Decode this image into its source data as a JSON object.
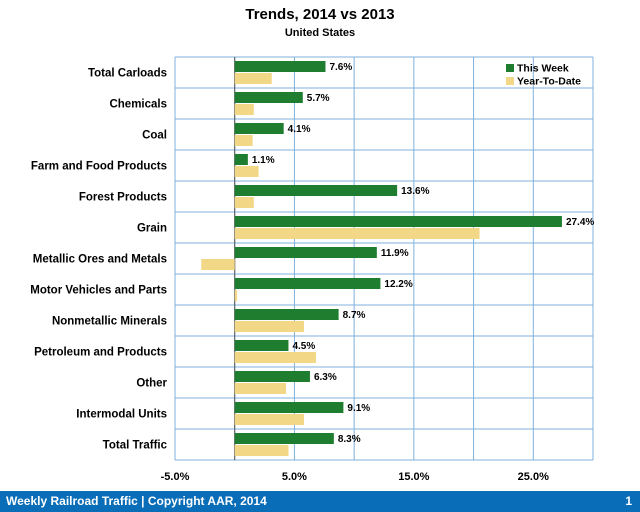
{
  "colors": {
    "this_week": "#1e7d2e",
    "year_to_date": "#f2d886",
    "grid": "#7fb0dc",
    "footer": "#0a6db8"
  },
  "chart_data": {
    "type": "bar",
    "orientation": "horizontal",
    "title": "Trends, 2014 vs 2013",
    "subtitle": "United States",
    "categories": [
      "Total Carloads",
      "Chemicals",
      "Coal",
      "Farm and Food Products",
      "Forest Products",
      "Grain",
      "Metallic Ores and Metals",
      "Motor Vehicles and Parts",
      "Nonmetallic Minerals",
      "Petroleum and Products",
      "Other",
      "Intermodal Units",
      "Total Traffic"
    ],
    "series": [
      {
        "name": "This Week",
        "values": [
          7.6,
          5.7,
          4.1,
          1.1,
          13.6,
          27.4,
          11.9,
          12.2,
          8.7,
          4.5,
          6.3,
          9.1,
          8.3
        ],
        "labels": [
          "7.6%",
          "5.7%",
          "4.1%",
          "1.1%",
          "13.6%",
          "27.4%",
          "11.9%",
          "12.2%",
          "8.7%",
          "4.5%",
          "6.3%",
          "9.1%",
          "8.3%"
        ]
      },
      {
        "name": "Year-To-Date",
        "values": [
          3.1,
          1.6,
          1.5,
          2.0,
          1.6,
          20.5,
          -2.8,
          0.2,
          5.8,
          6.8,
          4.3,
          5.8,
          4.5
        ]
      }
    ],
    "xlim": [
      -5.0,
      30.0
    ],
    "xticks": [
      -5.0,
      0.0,
      5.0,
      10.0,
      15.0,
      20.0,
      25.0,
      30.0
    ],
    "xtick_labels": [
      "-5.0%",
      "5.0%",
      "15.0%",
      "25.0%"
    ],
    "xtick_label_values": [
      -5.0,
      5.0,
      15.0,
      25.0
    ],
    "legend_position": "top-right",
    "grid": true
  },
  "footer": {
    "text": "Weekly Railroad Traffic | Copyright AAR, 2014",
    "page": "1"
  }
}
